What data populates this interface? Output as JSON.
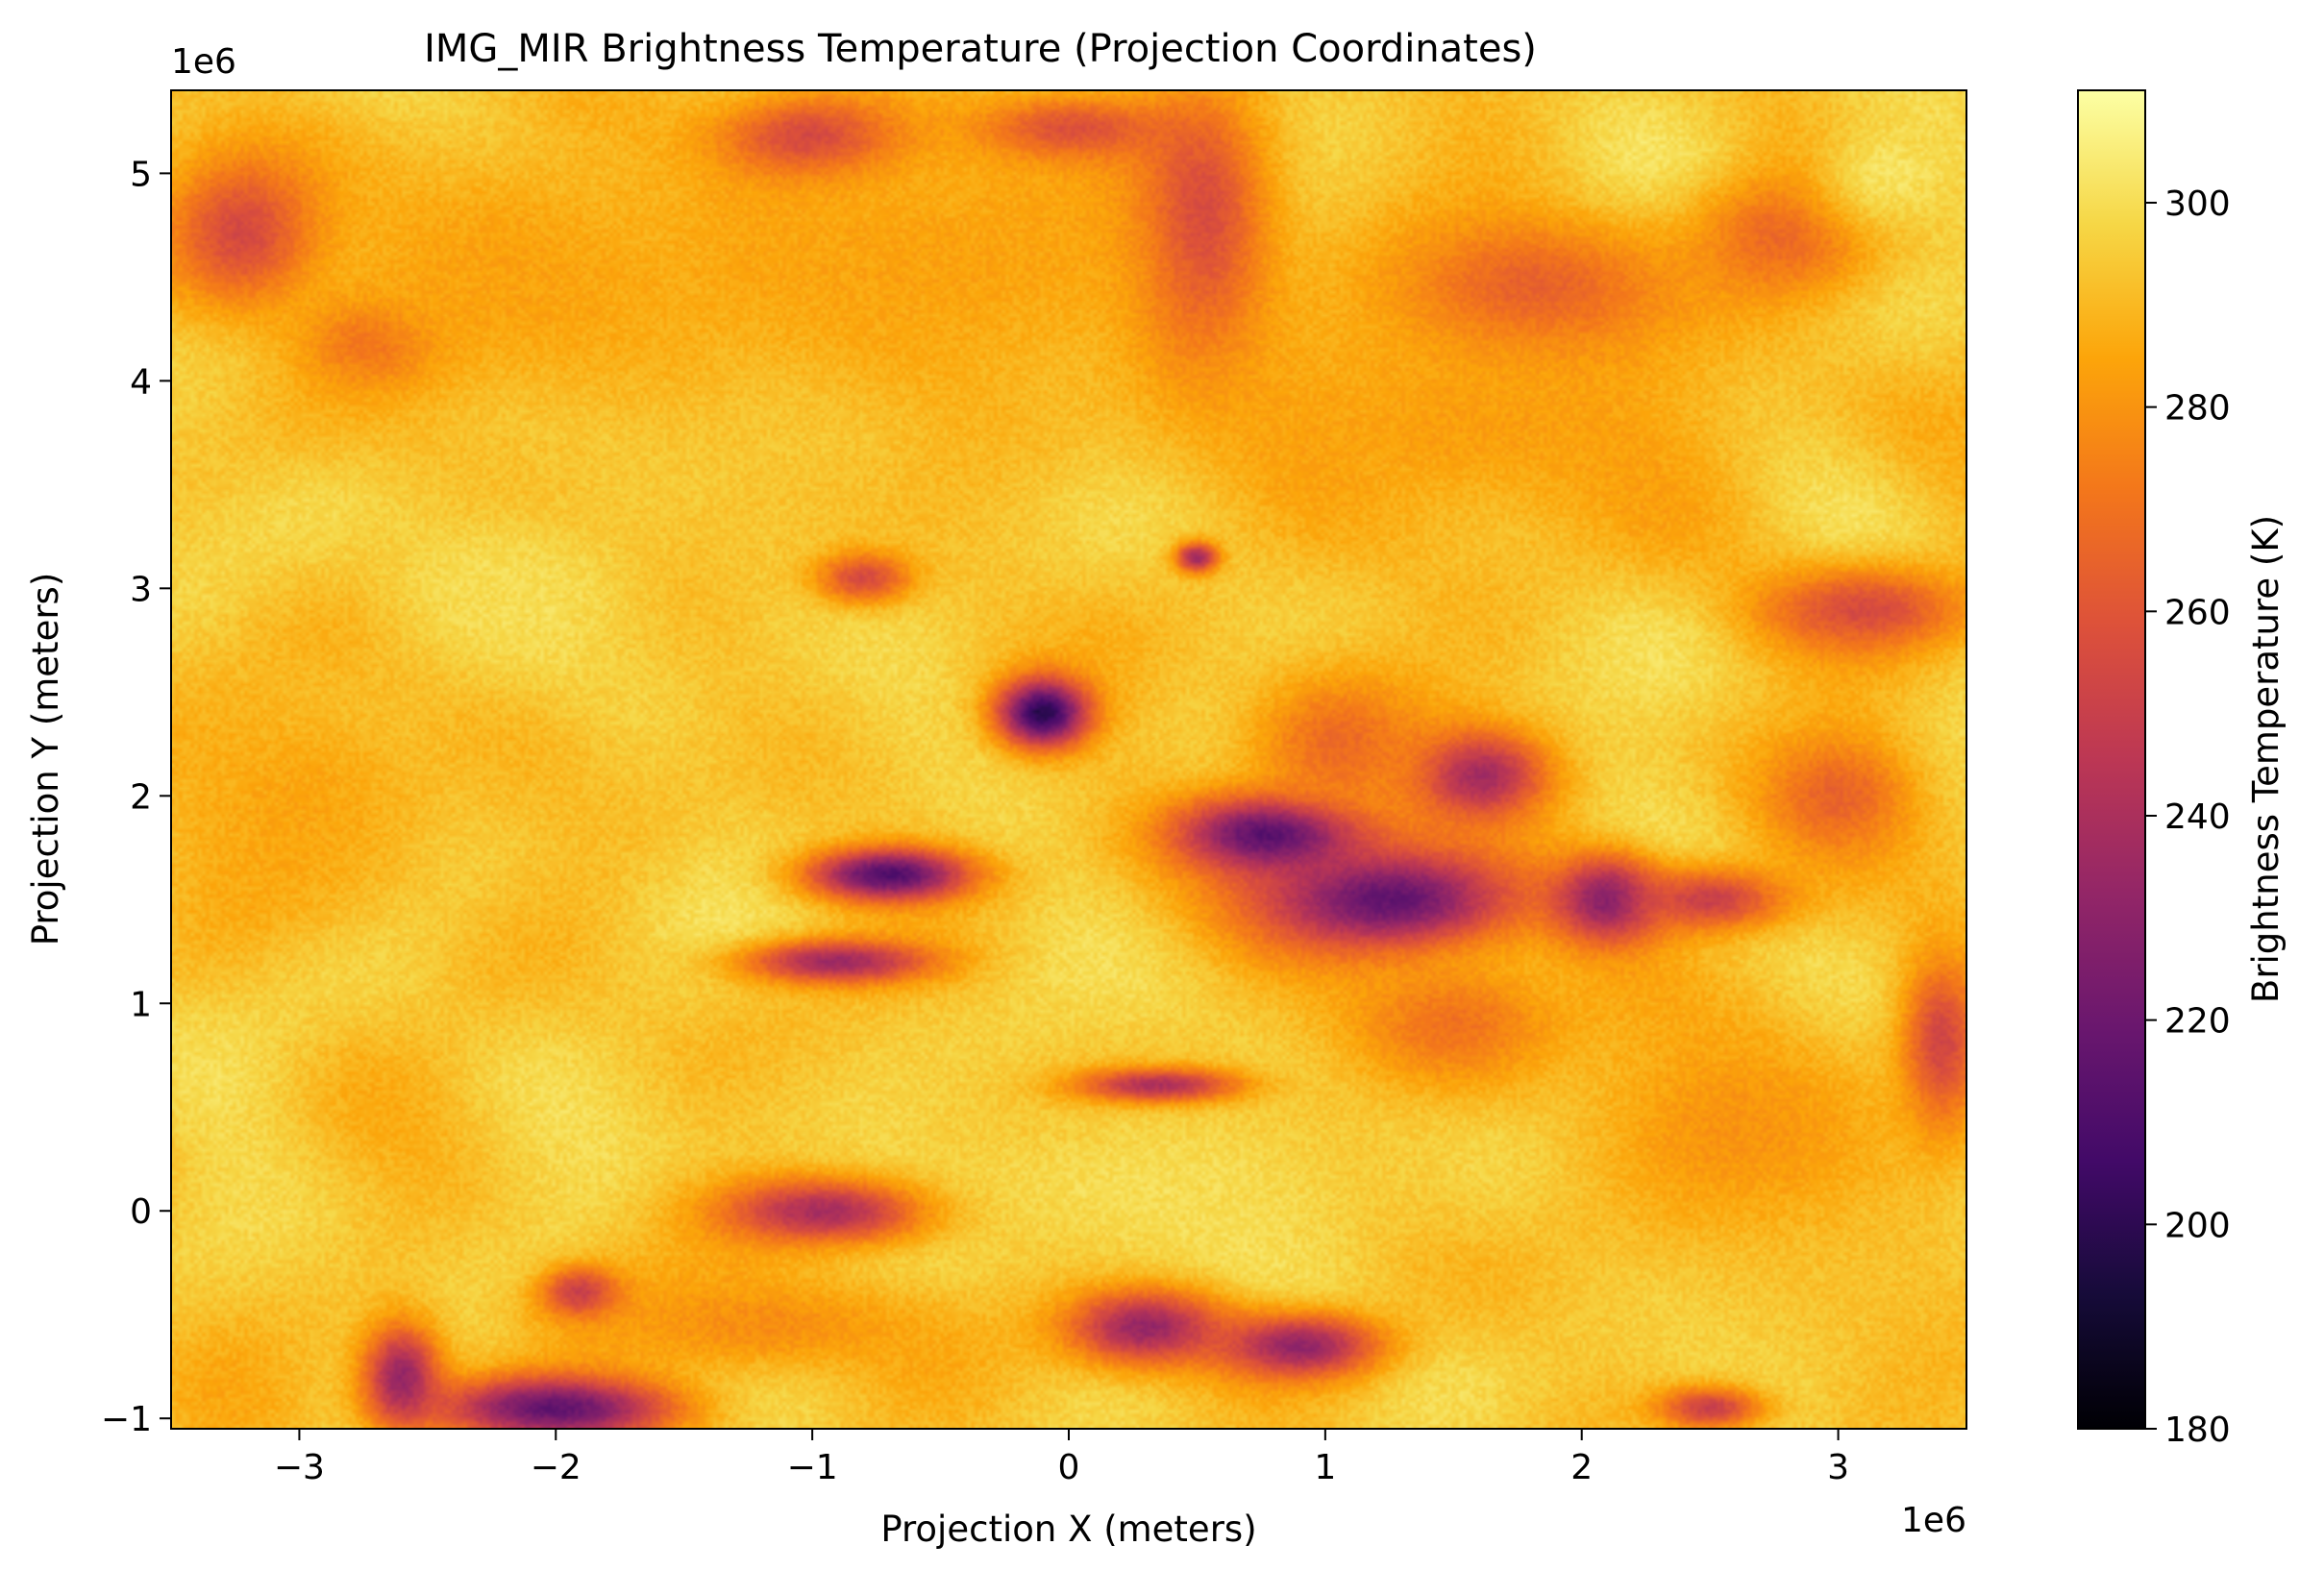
{
  "chart_data": {
    "type": "heatmap",
    "title": "IMG_MIR Brightness Temperature (Projection Coordinates)",
    "xlabel": "Projection X (meters)",
    "ylabel": "Projection Y (meters)",
    "x_offset_label": "1e6",
    "y_offset_label": "1e6",
    "xlim": [
      -3.5,
      3.5
    ],
    "ylim": [
      -1.05,
      5.4
    ],
    "x_ticks": [
      -3,
      -2,
      -1,
      0,
      1,
      2,
      3
    ],
    "x_tick_labels": [
      "−3",
      "−2",
      "−1",
      "0",
      "1",
      "2",
      "3"
    ],
    "y_ticks": [
      -1,
      0,
      1,
      2,
      3,
      4,
      5
    ],
    "y_tick_labels": [
      "−1",
      "0",
      "1",
      "2",
      "3",
      "4",
      "5"
    ],
    "colorbar": {
      "label": "Brightness Temperature (K)",
      "colormap": "inferno",
      "range": [
        180,
        311
      ],
      "ticks": [
        180,
        200,
        220,
        240,
        260,
        280,
        300
      ],
      "tick_labels": [
        "180",
        "200",
        "220",
        "240",
        "260",
        "280",
        "300"
      ]
    },
    "background_K": 294,
    "features": [
      {
        "x": -0.1,
        "y": 2.4,
        "sx": 0.17,
        "sy": 0.16,
        "value": 198
      },
      {
        "x": -0.7,
        "y": 1.62,
        "sx": 0.3,
        "sy": 0.12,
        "value": 210
      },
      {
        "x": 0.8,
        "y": 1.82,
        "sx": 0.35,
        "sy": 0.18,
        "value": 205
      },
      {
        "x": 1.25,
        "y": 1.5,
        "sx": 0.5,
        "sy": 0.25,
        "value": 215
      },
      {
        "x": 1.6,
        "y": 2.1,
        "sx": 0.25,
        "sy": 0.2,
        "value": 235
      },
      {
        "x": 2.1,
        "y": 1.5,
        "sx": 0.2,
        "sy": 0.2,
        "value": 225
      },
      {
        "x": 1.05,
        "y": 2.25,
        "sx": 0.35,
        "sy": 0.35,
        "value": 268
      },
      {
        "x": 0.5,
        "y": 4.7,
        "sx": 0.25,
        "sy": 0.55,
        "value": 225
      },
      {
        "x": -1.0,
        "y": 5.15,
        "sx": 0.35,
        "sy": 0.2,
        "value": 230
      },
      {
        "x": 0.0,
        "y": 5.2,
        "sx": 0.35,
        "sy": 0.15,
        "value": 240
      },
      {
        "x": -3.2,
        "y": 4.7,
        "sx": 0.3,
        "sy": 0.35,
        "value": 248
      },
      {
        "x": -2.7,
        "y": 4.2,
        "sx": 0.25,
        "sy": 0.2,
        "value": 258
      },
      {
        "x": 1.8,
        "y": 4.4,
        "sx": 0.5,
        "sy": 0.35,
        "value": 255
      },
      {
        "x": 2.8,
        "y": 4.7,
        "sx": 0.35,
        "sy": 0.3,
        "value": 265
      },
      {
        "x": 0.5,
        "y": 3.15,
        "sx": 0.08,
        "sy": 0.07,
        "value": 228
      },
      {
        "x": -0.8,
        "y": 3.05,
        "sx": 0.18,
        "sy": 0.12,
        "value": 255
      },
      {
        "x": 0.35,
        "y": 0.6,
        "sx": 0.3,
        "sy": 0.08,
        "value": 225
      },
      {
        "x": -0.9,
        "y": 1.2,
        "sx": 0.35,
        "sy": 0.1,
        "value": 235
      },
      {
        "x": -0.9,
        "y": 0.0,
        "sx": 0.4,
        "sy": 0.15,
        "value": 222
      },
      {
        "x": 0.3,
        "y": -0.55,
        "sx": 0.3,
        "sy": 0.18,
        "value": 228
      },
      {
        "x": 0.9,
        "y": -0.65,
        "sx": 0.3,
        "sy": 0.15,
        "value": 230
      },
      {
        "x": -2.0,
        "y": -0.95,
        "sx": 0.45,
        "sy": 0.15,
        "value": 215
      },
      {
        "x": -2.6,
        "y": -0.8,
        "sx": 0.15,
        "sy": 0.25,
        "value": 232
      },
      {
        "x": -1.9,
        "y": -0.4,
        "sx": 0.15,
        "sy": 0.12,
        "value": 240
      },
      {
        "x": 3.4,
        "y": 0.8,
        "sx": 0.15,
        "sy": 0.4,
        "value": 250
      },
      {
        "x": 3.1,
        "y": 2.9,
        "sx": 0.4,
        "sy": 0.2,
        "value": 255
      },
      {
        "x": 2.5,
        "y": 1.5,
        "sx": 0.3,
        "sy": 0.15,
        "value": 250
      },
      {
        "x": 3.0,
        "y": 2.0,
        "sx": 0.3,
        "sy": 0.3,
        "value": 265
      },
      {
        "x": 2.5,
        "y": -0.95,
        "sx": 0.2,
        "sy": 0.1,
        "value": 250
      },
      {
        "x": 1.5,
        "y": 0.9,
        "sx": 0.4,
        "sy": 0.3,
        "value": 270
      },
      {
        "x": -0.5,
        "y": 4.6,
        "sx": 1.3,
        "sy": 0.7,
        "value": 284
      },
      {
        "x": 1.6,
        "y": 3.8,
        "sx": 1.1,
        "sy": 0.6,
        "value": 283
      },
      {
        "x": -3.0,
        "y": 2.0,
        "sx": 0.6,
        "sy": 0.6,
        "value": 285
      },
      {
        "x": -2.2,
        "y": 4.5,
        "sx": 0.8,
        "sy": 0.6,
        "value": 284
      },
      {
        "x": 3.2,
        "y": 5.0,
        "sx": 0.3,
        "sy": 0.3,
        "value": 302
      },
      {
        "x": -1.2,
        "y": -0.55,
        "sx": 0.7,
        "sy": 0.25,
        "value": 278
      },
      {
        "x": 2.6,
        "y": 0.4,
        "sx": 0.6,
        "sy": 0.5,
        "value": 280
      },
      {
        "x": -2.2,
        "y": 3.0,
        "sx": 0.5,
        "sy": 0.35,
        "value": 300
      },
      {
        "x": 0.3,
        "y": 0.1,
        "sx": 1.0,
        "sy": 0.4,
        "value": 300
      }
    ]
  }
}
